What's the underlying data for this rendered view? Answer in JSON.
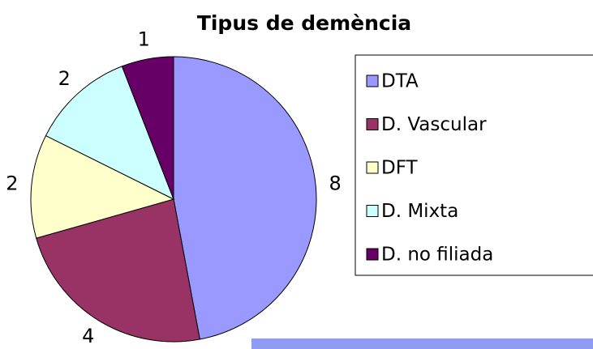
{
  "chart_data": {
    "type": "pie",
    "title": "Tipus de demència",
    "categories": [
      "DTA",
      "D. Vascular",
      "DFT",
      "D. Mixta",
      "D. no filiada"
    ],
    "values": [
      8,
      4,
      2,
      2,
      1
    ],
    "colors": [
      "#9999ff",
      "#993366",
      "#ffffcc",
      "#ccffff",
      "#660066"
    ],
    "legend": "right"
  }
}
